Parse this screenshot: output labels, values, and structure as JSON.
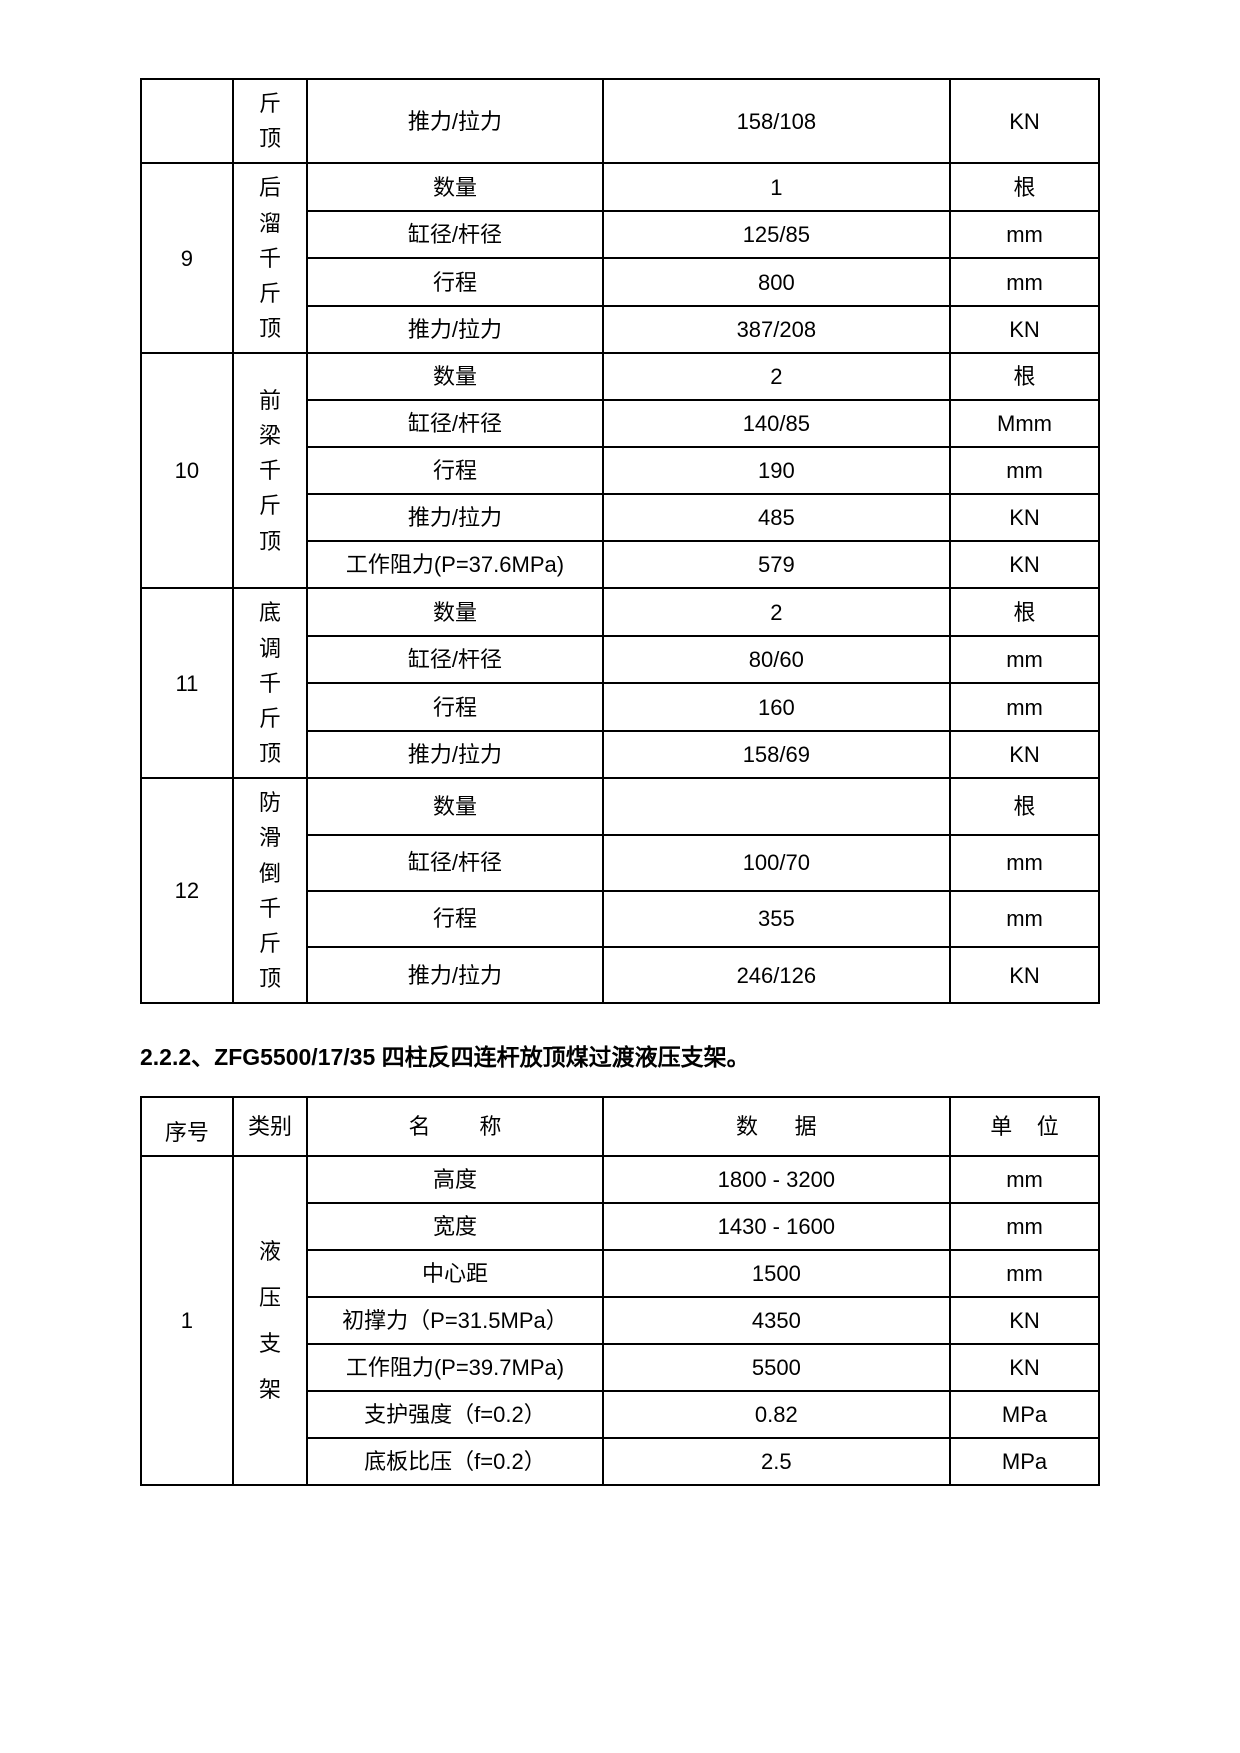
{
  "table1": {
    "rows": [
      {
        "idx": "",
        "cat": "斤\n顶",
        "name": "推力/拉力",
        "val": "158/108",
        "unit": "KN"
      },
      {
        "idx": "9",
        "cat": "后\n溜\n千\n斤\n顶",
        "sub": [
          {
            "name": "数量",
            "val": "1",
            "unit": "根"
          },
          {
            "name": "缸径/杆径",
            "val": "125/85",
            "unit": "mm"
          },
          {
            "name": "行程",
            "val": "800",
            "unit": "mm"
          },
          {
            "name": "推力/拉力",
            "val": "387/208",
            "unit": "KN"
          }
        ]
      },
      {
        "idx": "10",
        "cat": "前\n梁\n千\n斤\n顶",
        "sub": [
          {
            "name": "数量",
            "val": "2",
            "unit": "根"
          },
          {
            "name": "缸径/杆径",
            "val": "140/85",
            "unit": "Mmm"
          },
          {
            "name": "行程",
            "val": "190",
            "unit": "mm"
          },
          {
            "name": "推力/拉力",
            "val": "485",
            "unit": "KN"
          },
          {
            "name": "工作阻力(P=37.6MPa)",
            "val": "579",
            "unit": "KN"
          }
        ]
      },
      {
        "idx": "11",
        "cat": "底\n调\n千\n斤\n顶",
        "sub": [
          {
            "name": "数量",
            "val": "2",
            "unit": "根"
          },
          {
            "name": "缸径/杆径",
            "val": "80/60",
            "unit": "mm"
          },
          {
            "name": "行程",
            "val": "160",
            "unit": "mm"
          },
          {
            "name": "推力/拉力",
            "val": "158/69",
            "unit": "KN"
          }
        ]
      },
      {
        "idx": "12",
        "cat": "防\n滑\n倒\n千\n斤\n顶",
        "sub": [
          {
            "name": "数量",
            "val": "",
            "unit": "根"
          },
          {
            "name": "缸径/杆径",
            "val": "100/70",
            "unit": "mm"
          },
          {
            "name": "行程",
            "val": "355",
            "unit": "mm"
          },
          {
            "name": "推力/拉力",
            "val": "246/126",
            "unit": "KN"
          }
        ]
      }
    ]
  },
  "heading": "2.2.2、ZFG5500/17/35 四柱反四连杆放顶煤过渡液压支架。",
  "table2": {
    "header": {
      "idx": "序号",
      "cat": "类别",
      "name": "名        称",
      "val": "数      据",
      "unit": "单    位"
    },
    "group": {
      "idx": "1",
      "cat": "液\n压\n支\n架",
      "sub": [
        {
          "name": "高度",
          "val": "1800 - 3200",
          "unit": "mm"
        },
        {
          "name": "宽度",
          "val": "1430 - 1600",
          "unit": "mm"
        },
        {
          "name": "中心距",
          "val": "1500",
          "unit": "mm"
        },
        {
          "name": "初撑力（P=31.5MPa）",
          "val": "4350",
          "unit": "KN"
        },
        {
          "name": "工作阻力(P=39.7MPa)",
          "val": "5500",
          "unit": "KN"
        },
        {
          "name": "支护强度（f=0.2）",
          "val": "0.82",
          "unit": "MPa"
        },
        {
          "name": "底板比压（f=0.2）",
          "val": "2.5",
          "unit": "MPa"
        }
      ]
    }
  }
}
